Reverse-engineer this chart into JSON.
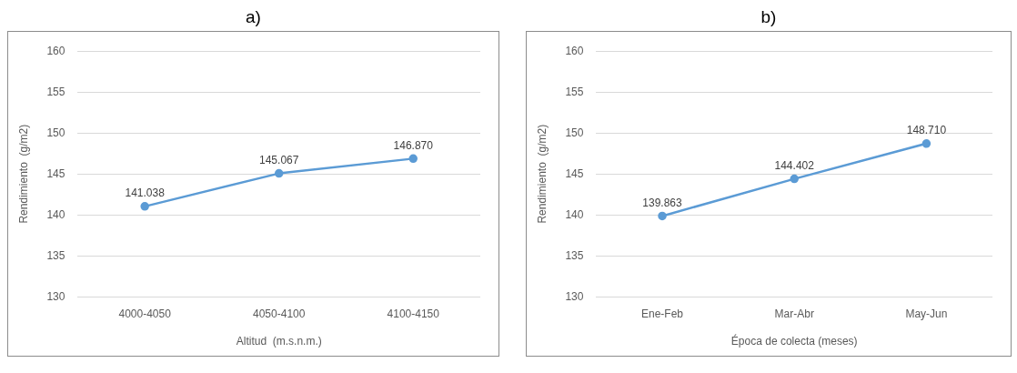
{
  "chart_data": [
    {
      "type": "line",
      "title": "a)",
      "xlabel": "Altitud  (m.s.n.m.)",
      "ylabel": "Rendimiento  (g/m2)",
      "categories": [
        "4000-4050",
        "4050-4100",
        "4100-4150"
      ],
      "series": [
        {
          "color": "#5b9bd5",
          "values": [
            141.038,
            145.067,
            146.87
          ],
          "value_labels": [
            "141.038",
            "145.067",
            "146.870"
          ]
        }
      ],
      "ylim": [
        130,
        160
      ],
      "yticks": [
        130,
        135,
        140,
        145,
        150,
        155,
        160
      ],
      "grid": "y",
      "marker": "circle",
      "line_style": "solid"
    },
    {
      "type": "line",
      "title": "b)",
      "xlabel": "Época de colecta (meses)",
      "ylabel": "Rendimiento  (g/m2)",
      "categories": [
        "Ene-Feb",
        "Mar-Abr",
        "May-Jun"
      ],
      "series": [
        {
          "color": "#5b9bd5",
          "values": [
            139.863,
            144.402,
            148.71
          ],
          "value_labels": [
            "139.863",
            "144.402",
            "148.710"
          ]
        }
      ],
      "ylim": [
        130,
        160
      ],
      "yticks": [
        130,
        135,
        140,
        145,
        150,
        155,
        160
      ],
      "grid": "y",
      "marker": "circle",
      "line_style": "solid"
    }
  ]
}
